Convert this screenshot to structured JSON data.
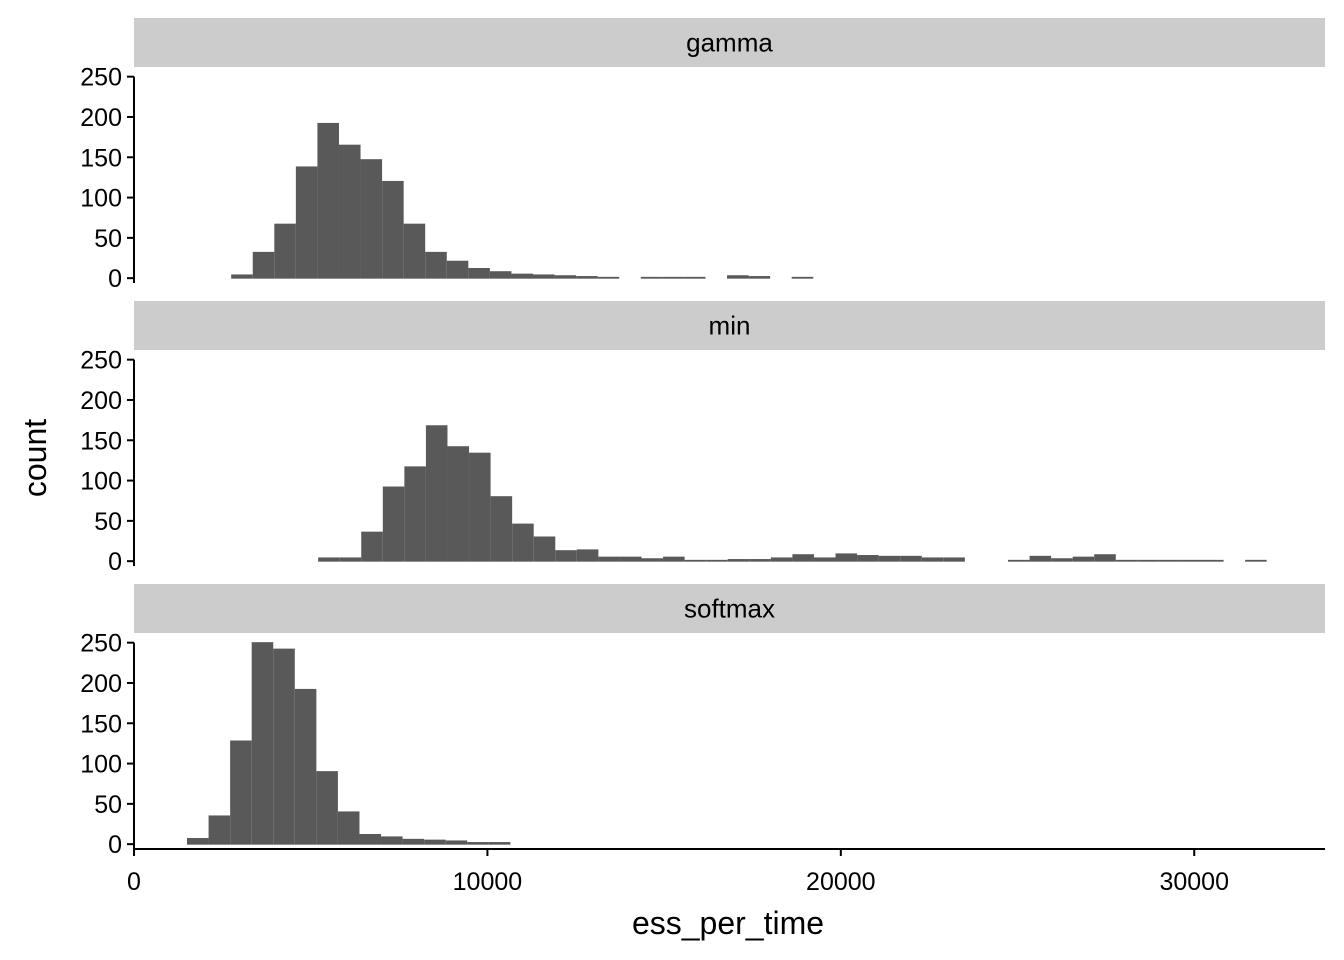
{
  "chart_data": {
    "type": "bar",
    "subtype": "faceted-histogram",
    "xlabel": "ess_per_time",
    "ylabel": "count",
    "xlim": [
      0,
      33700
    ],
    "ylim": [
      -6,
      262
    ],
    "x_ticks": [
      0,
      10000,
      20000,
      30000
    ],
    "y_ticks": [
      0,
      50,
      100,
      150,
      200,
      250
    ],
    "bin_width": 610,
    "bar_color": "#595959",
    "strip_color": "#cccccc",
    "panels": [
      {
        "name": "gamma",
        "x": [
          2750,
          3360,
          3970,
          4580,
          5190,
          5800,
          6410,
          7020,
          7630,
          8240,
          8850,
          9460,
          10070,
          10680,
          11290,
          11900,
          12510,
          13120,
          14340,
          14950,
          15560,
          16780,
          17390,
          18610
        ],
        "values": [
          4,
          32,
          67,
          138,
          192,
          165,
          147,
          120,
          67,
          32,
          21,
          12,
          8,
          5,
          4,
          3,
          2,
          1,
          1,
          1,
          1,
          3,
          2,
          1
        ]
      },
      {
        "name": "min",
        "x": [
          5210,
          5820,
          6430,
          7040,
          7650,
          8260,
          8870,
          9480,
          10090,
          10700,
          11310,
          11920,
          12530,
          13140,
          13750,
          14360,
          14970,
          15580,
          16190,
          16800,
          17410,
          18020,
          18630,
          19240,
          19850,
          20460,
          21070,
          21680,
          22290,
          22900,
          24730,
          25340,
          25950,
          26560,
          27170,
          27780,
          28390,
          29000,
          29610,
          30220,
          31440
        ],
        "values": [
          4,
          4,
          36,
          92,
          117,
          168,
          142,
          134,
          80,
          46,
          30,
          13,
          14,
          5,
          5,
          3,
          5,
          1,
          1,
          2,
          2,
          4,
          8,
          4,
          9,
          7,
          6,
          6,
          4,
          4,
          1,
          6,
          3,
          5,
          8,
          1,
          1,
          1,
          1,
          1,
          1
        ]
      },
      {
        "name": "softmax",
        "x": [
          1500,
          2110,
          2720,
          3330,
          3940,
          4550,
          5160,
          5770,
          6380,
          6990,
          7600,
          8210,
          8820,
          9430,
          10040
        ],
        "values": [
          7,
          35,
          128,
          250,
          242,
          192,
          90,
          40,
          12,
          9,
          6,
          5,
          4,
          2,
          2
        ]
      }
    ]
  }
}
